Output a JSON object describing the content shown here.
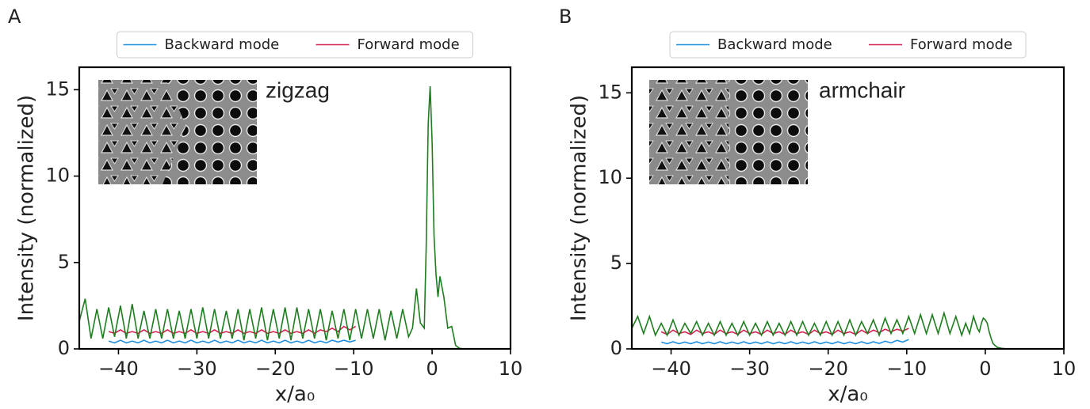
{
  "chart_data": [
    {
      "type": "line",
      "panel_label": "A",
      "annotation": "zigzag",
      "ylabel": "Intensity (normalized)",
      "xlabel": "x/a₀",
      "legend": "above",
      "xlim": [
        -45,
        10
      ],
      "ylim": [
        0,
        16.3
      ],
      "xticks": [
        {
          "value": -40,
          "label": "−40"
        },
        {
          "value": -30,
          "label": "−30"
        },
        {
          "value": -20,
          "label": "−20"
        },
        {
          "value": -10,
          "label": "−10"
        },
        0,
        10
      ],
      "yticks": [
        0,
        5,
        10,
        15
      ],
      "x": [
        -45,
        -44.25,
        -43.5,
        -42.75,
        -42,
        -41.25,
        -40.5,
        -39.75,
        -39,
        -38.25,
        -37.5,
        -36.75,
        -36,
        -35.25,
        -34.5,
        -33.75,
        -33,
        -32.25,
        -31.5,
        -30.75,
        -30,
        -29.25,
        -28.5,
        -27.75,
        -27,
        -26.25,
        -25.5,
        -24.75,
        -24,
        -23.25,
        -22.5,
        -21.75,
        -21,
        -20.25,
        -19.5,
        -18.75,
        -18,
        -17.25,
        -16.5,
        -15.75,
        -15,
        -14.25,
        -13.5,
        -12.75,
        -12,
        -11.25,
        -10.5,
        -9.75,
        -9,
        -8.25,
        -7.5,
        -6.75,
        -6,
        -5.25,
        -4.5,
        -3.75,
        -3,
        -2.5,
        -2,
        -1.5,
        -1,
        -0.75,
        -0.5,
        -0.25,
        0,
        0.25,
        0.5,
        0.75,
        1,
        1.5,
        2,
        2.5,
        3,
        3.5,
        4
      ],
      "series": [
        {
          "name": "Backward mode",
          "color": "#1f8fe0",
          "values": [
            null,
            null,
            null,
            null,
            null,
            0.45,
            0.35,
            0.5,
            0.35,
            0.45,
            0.35,
            0.5,
            0.35,
            0.45,
            0.35,
            0.5,
            0.35,
            0.45,
            0.35,
            0.5,
            0.35,
            0.45,
            0.35,
            0.5,
            0.35,
            0.45,
            0.35,
            0.5,
            0.35,
            0.45,
            0.35,
            0.5,
            0.35,
            0.45,
            0.35,
            0.5,
            0.35,
            0.45,
            0.35,
            0.5,
            0.35,
            0.45,
            0.35,
            0.5,
            0.4,
            0.5,
            0.4,
            0.5,
            null,
            null,
            null,
            null,
            null,
            null,
            null,
            null,
            null,
            null,
            null,
            null,
            null,
            null,
            null,
            null,
            null,
            null,
            null,
            null,
            null,
            null,
            null,
            null,
            null,
            null,
            null
          ]
        },
        {
          "name": "Forward mode",
          "color": "#d62050",
          "values": [
            null,
            null,
            null,
            null,
            null,
            1.0,
            0.9,
            1.1,
            0.9,
            1.0,
            0.9,
            1.1,
            0.9,
            1.0,
            0.9,
            1.1,
            0.9,
            1.0,
            0.9,
            1.1,
            0.9,
            1.0,
            0.9,
            1.1,
            0.9,
            1.0,
            0.9,
            1.1,
            0.9,
            1.0,
            0.9,
            1.1,
            0.9,
            1.0,
            0.9,
            1.1,
            0.9,
            1.0,
            0.9,
            1.1,
            0.9,
            1.1,
            1.0,
            1.2,
            1.0,
            1.3,
            1.1,
            1.3,
            null,
            null,
            null,
            null,
            null,
            null,
            null,
            null,
            null,
            null,
            null,
            null,
            null,
            null,
            null,
            null,
            null,
            null,
            null,
            null,
            null,
            null,
            null,
            null,
            null,
            null,
            null
          ]
        },
        {
          "color": "#1e7d1e",
          "values": [
            1.6,
            2.9,
            0.6,
            2.3,
            0.6,
            2.4,
            0.7,
            2.5,
            0.6,
            2.6,
            0.6,
            2.2,
            0.6,
            2.3,
            0.6,
            2.3,
            0.6,
            2.2,
            0.6,
            2.3,
            0.6,
            2.4,
            0.6,
            2.3,
            0.6,
            2.2,
            0.6,
            2.3,
            0.5,
            2.3,
            0.6,
            2.4,
            0.5,
            2.3,
            0.6,
            2.4,
            0.5,
            2.4,
            0.6,
            2.3,
            0.6,
            2.3,
            0.5,
            2.2,
            0.6,
            2.3,
            0.5,
            2.3,
            0.6,
            2.3,
            0.6,
            2.3,
            0.5,
            2.2,
            0.6,
            2.3,
            0.7,
            1.2,
            3.5,
            1.5,
            1.2,
            6,
            13,
            15.2,
            12,
            6.5,
            4.3,
            3,
            4.2,
            3,
            1.2,
            1.3,
            0.2,
            0.03,
            0
          ]
        }
      ]
    },
    {
      "type": "line",
      "panel_label": "B",
      "annotation": "armchair",
      "ylabel": "Intensity (normalized)",
      "xlabel": "x/a₀",
      "legend": "above",
      "xlim": [
        -45,
        10
      ],
      "ylim": [
        0,
        16.5
      ],
      "xticks": [
        {
          "value": -40,
          "label": "−40"
        },
        {
          "value": -30,
          "label": "−30"
        },
        {
          "value": -20,
          "label": "−20"
        },
        {
          "value": -10,
          "label": "−10"
        },
        0,
        10
      ],
      "yticks": [
        0,
        5,
        10,
        15
      ],
      "x": [
        -45,
        -44.25,
        -43.5,
        -42.75,
        -42,
        -41.25,
        -40.5,
        -39.75,
        -39,
        -38.25,
        -37.5,
        -36.75,
        -36,
        -35.25,
        -34.5,
        -33.75,
        -33,
        -32.25,
        -31.5,
        -30.75,
        -30,
        -29.25,
        -28.5,
        -27.75,
        -27,
        -26.25,
        -25.5,
        -24.75,
        -24,
        -23.25,
        -22.5,
        -21.75,
        -21,
        -20.25,
        -19.5,
        -18.75,
        -18,
        -17.25,
        -16.5,
        -15.75,
        -15,
        -14.25,
        -13.5,
        -12.75,
        -12,
        -11.25,
        -10.5,
        -9.75,
        -9,
        -8.25,
        -7.5,
        -6.75,
        -6,
        -5.25,
        -4.5,
        -3.75,
        -3,
        -2.5,
        -2,
        -1.5,
        -1,
        -0.75,
        -0.5,
        -0.25,
        0,
        0.25,
        0.5,
        0.75,
        1,
        1.5,
        2,
        2.5,
        3,
        3.5,
        4
      ],
      "series": [
        {
          "name": "Backward mode",
          "color": "#1f8fe0",
          "values": [
            null,
            null,
            null,
            null,
            null,
            0.4,
            0.3,
            0.42,
            0.3,
            0.4,
            0.3,
            0.42,
            0.3,
            0.4,
            0.3,
            0.42,
            0.3,
            0.4,
            0.3,
            0.42,
            0.3,
            0.4,
            0.3,
            0.42,
            0.3,
            0.4,
            0.3,
            0.42,
            0.3,
            0.4,
            0.3,
            0.42,
            0.3,
            0.4,
            0.3,
            0.42,
            0.3,
            0.4,
            0.3,
            0.42,
            0.3,
            0.42,
            0.32,
            0.45,
            0.35,
            0.5,
            0.4,
            0.55,
            null,
            null,
            null,
            null,
            null,
            null,
            null,
            null,
            null,
            null,
            null,
            null,
            null,
            null,
            null,
            null,
            null,
            null,
            null,
            null,
            null,
            null,
            null,
            null,
            null,
            null,
            null
          ]
        },
        {
          "name": "Forward mode",
          "color": "#d62050",
          "values": [
            null,
            null,
            null,
            null,
            null,
            1.0,
            0.85,
            1.1,
            0.9,
            1.0,
            0.85,
            1.1,
            0.9,
            1.0,
            0.85,
            1.1,
            0.9,
            1.0,
            0.85,
            1.1,
            0.9,
            1.0,
            0.85,
            1.1,
            0.9,
            1.0,
            0.85,
            1.1,
            0.9,
            1.0,
            0.85,
            1.1,
            0.9,
            1.0,
            0.85,
            1.1,
            0.9,
            1.0,
            0.85,
            1.1,
            0.9,
            1.1,
            0.95,
            1.15,
            1.0,
            1.15,
            1.05,
            1.2,
            null,
            null,
            null,
            null,
            null,
            null,
            null,
            null,
            null,
            null,
            null,
            null,
            null,
            null,
            null,
            null,
            null,
            null,
            null,
            null,
            null,
            null,
            null,
            null,
            null,
            null,
            null
          ]
        },
        {
          "color": "#1e7d1e",
          "values": [
            1.2,
            1.9,
            0.9,
            1.9,
            0.8,
            1.5,
            0.8,
            1.7,
            0.8,
            1.5,
            0.9,
            1.6,
            0.8,
            1.5,
            0.8,
            1.6,
            0.8,
            1.5,
            0.8,
            1.6,
            0.8,
            1.5,
            0.8,
            1.6,
            0.8,
            1.5,
            0.8,
            1.6,
            0.8,
            1.6,
            0.8,
            1.5,
            0.8,
            1.6,
            0.8,
            1.6,
            0.8,
            1.7,
            0.8,
            1.6,
            0.9,
            1.7,
            0.8,
            1.8,
            0.9,
            1.7,
            0.9,
            1.9,
            0.9,
            2.0,
            0.9,
            2.0,
            0.9,
            2.1,
            0.9,
            1.9,
            0.8,
            1.5,
            0.9,
            1.9,
            1.2,
            1.0,
            1.5,
            1.8,
            1.7,
            1.5,
            1.0,
            0.6,
            0.3,
            0.1,
            0.04,
            0.01,
            0,
            0,
            0
          ]
        }
      ]
    }
  ]
}
